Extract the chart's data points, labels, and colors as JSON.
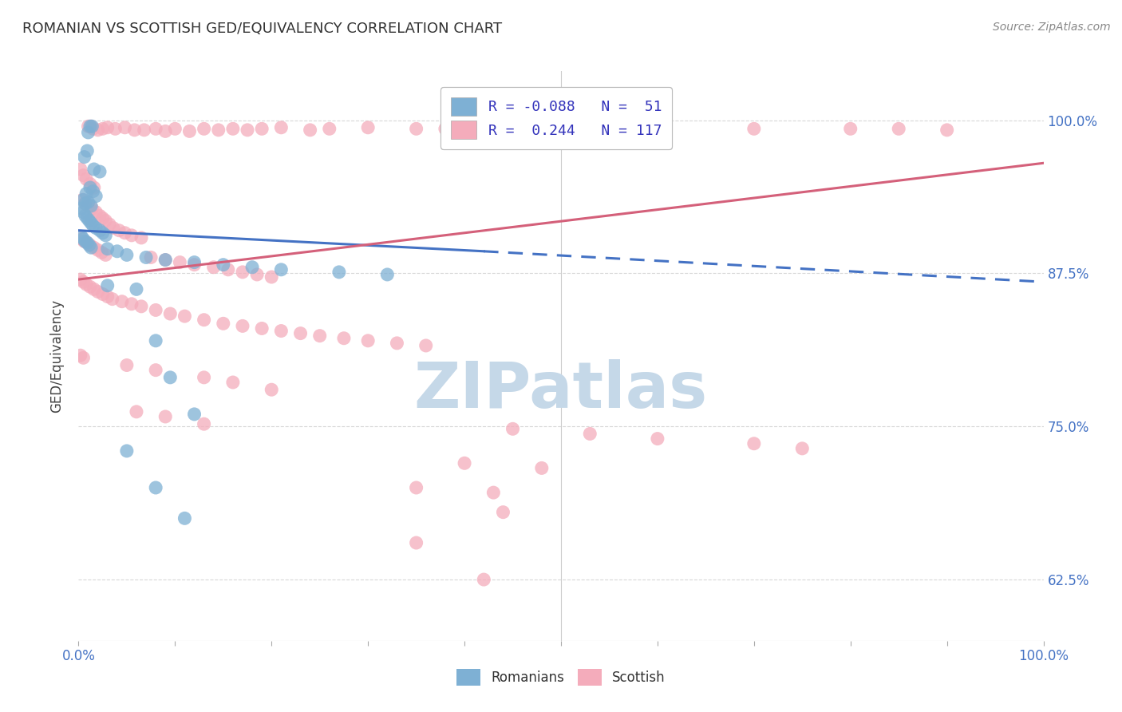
{
  "title": "ROMANIAN VS SCOTTISH GED/EQUIVALENCY CORRELATION CHART",
  "source": "Source: ZipAtlas.com",
  "ylabel": "GED/Equivalency",
  "xlim": [
    0.0,
    1.0
  ],
  "ylim": [
    0.575,
    1.04
  ],
  "yticks": [
    0.625,
    0.75,
    0.875,
    1.0
  ],
  "ytick_labels": [
    "62.5%",
    "75.0%",
    "87.5%",
    "100.0%"
  ],
  "xtick_labels_left": "0.0%",
  "xtick_labels_right": "100.0%",
  "romanian_color": "#7EB0D4",
  "scottish_color": "#F4ACBB",
  "trendline_romanian_color": "#4472C4",
  "trendline_scottish_color": "#D4607A",
  "background_color": "#ffffff",
  "grid_color": "#d8d8d8",
  "watermark_color": "#c5d8e8",
  "legend_text_color": "#3333BB",
  "R_romanian": -0.088,
  "N_romanian": 51,
  "R_scottish": 0.244,
  "N_scottish": 117,
  "trendline_rom_x0": 0.0,
  "trendline_rom_y0": 0.91,
  "trendline_rom_x1": 0.42,
  "trendline_rom_y1": 0.893,
  "trendline_rom_dash_x1": 1.0,
  "trendline_rom_dash_y1": 0.868,
  "trendline_sco_x0": 0.0,
  "trendline_sco_y0": 0.87,
  "trendline_sco_x1": 1.0,
  "trendline_sco_y1": 0.965,
  "romanian_points": [
    [
      0.01,
      0.99
    ],
    [
      0.012,
      0.995
    ],
    [
      0.014,
      0.995
    ],
    [
      0.006,
      0.97
    ],
    [
      0.009,
      0.975
    ],
    [
      0.016,
      0.96
    ],
    [
      0.022,
      0.958
    ],
    [
      0.008,
      0.94
    ],
    [
      0.012,
      0.945
    ],
    [
      0.015,
      0.942
    ],
    [
      0.018,
      0.938
    ],
    [
      0.005,
      0.935
    ],
    [
      0.007,
      0.932
    ],
    [
      0.01,
      0.933
    ],
    [
      0.013,
      0.93
    ],
    [
      0.003,
      0.928
    ],
    [
      0.005,
      0.925
    ],
    [
      0.007,
      0.922
    ],
    [
      0.009,
      0.92
    ],
    [
      0.011,
      0.918
    ],
    [
      0.013,
      0.916
    ],
    [
      0.015,
      0.914
    ],
    [
      0.018,
      0.912
    ],
    [
      0.022,
      0.91
    ],
    [
      0.025,
      0.908
    ],
    [
      0.028,
      0.906
    ],
    [
      0.003,
      0.905
    ],
    [
      0.005,
      0.903
    ],
    [
      0.007,
      0.901
    ],
    [
      0.009,
      0.9
    ],
    [
      0.011,
      0.898
    ],
    [
      0.013,
      0.896
    ],
    [
      0.03,
      0.895
    ],
    [
      0.04,
      0.893
    ],
    [
      0.05,
      0.89
    ],
    [
      0.07,
      0.888
    ],
    [
      0.09,
      0.886
    ],
    [
      0.12,
      0.884
    ],
    [
      0.15,
      0.882
    ],
    [
      0.18,
      0.88
    ],
    [
      0.21,
      0.878
    ],
    [
      0.27,
      0.876
    ],
    [
      0.32,
      0.874
    ],
    [
      0.03,
      0.865
    ],
    [
      0.06,
      0.862
    ],
    [
      0.08,
      0.82
    ],
    [
      0.095,
      0.79
    ],
    [
      0.12,
      0.76
    ],
    [
      0.05,
      0.73
    ],
    [
      0.08,
      0.7
    ],
    [
      0.11,
      0.675
    ]
  ],
  "scottish_points": [
    [
      0.01,
      0.995
    ],
    [
      0.013,
      0.995
    ],
    [
      0.015,
      0.993
    ],
    [
      0.02,
      0.992
    ],
    [
      0.025,
      0.993
    ],
    [
      0.03,
      0.994
    ],
    [
      0.038,
      0.993
    ],
    [
      0.048,
      0.994
    ],
    [
      0.058,
      0.992
    ],
    [
      0.068,
      0.992
    ],
    [
      0.08,
      0.993
    ],
    [
      0.09,
      0.991
    ],
    [
      0.1,
      0.993
    ],
    [
      0.115,
      0.991
    ],
    [
      0.13,
      0.993
    ],
    [
      0.145,
      0.992
    ],
    [
      0.16,
      0.993
    ],
    [
      0.175,
      0.992
    ],
    [
      0.19,
      0.993
    ],
    [
      0.21,
      0.994
    ],
    [
      0.24,
      0.992
    ],
    [
      0.26,
      0.993
    ],
    [
      0.3,
      0.994
    ],
    [
      0.35,
      0.993
    ],
    [
      0.38,
      0.993
    ],
    [
      0.42,
      0.991
    ],
    [
      0.5,
      0.993
    ],
    [
      0.6,
      0.992
    ],
    [
      0.7,
      0.993
    ],
    [
      0.8,
      0.993
    ],
    [
      0.85,
      0.993
    ],
    [
      0.9,
      0.992
    ],
    [
      0.002,
      0.96
    ],
    [
      0.005,
      0.955
    ],
    [
      0.008,
      0.952
    ],
    [
      0.012,
      0.948
    ],
    [
      0.016,
      0.945
    ],
    [
      0.004,
      0.935
    ],
    [
      0.007,
      0.932
    ],
    [
      0.01,
      0.93
    ],
    [
      0.014,
      0.928
    ],
    [
      0.018,
      0.925
    ],
    [
      0.022,
      0.922
    ],
    [
      0.025,
      0.92
    ],
    [
      0.028,
      0.918
    ],
    [
      0.032,
      0.915
    ],
    [
      0.036,
      0.912
    ],
    [
      0.042,
      0.91
    ],
    [
      0.048,
      0.908
    ],
    [
      0.055,
      0.906
    ],
    [
      0.065,
      0.904
    ],
    [
      0.003,
      0.903
    ],
    [
      0.006,
      0.901
    ],
    [
      0.009,
      0.9
    ],
    [
      0.012,
      0.898
    ],
    [
      0.016,
      0.896
    ],
    [
      0.02,
      0.894
    ],
    [
      0.024,
      0.892
    ],
    [
      0.028,
      0.89
    ],
    [
      0.075,
      0.888
    ],
    [
      0.09,
      0.886
    ],
    [
      0.105,
      0.884
    ],
    [
      0.12,
      0.882
    ],
    [
      0.14,
      0.88
    ],
    [
      0.155,
      0.878
    ],
    [
      0.17,
      0.876
    ],
    [
      0.185,
      0.874
    ],
    [
      0.2,
      0.872
    ],
    [
      0.002,
      0.87
    ],
    [
      0.005,
      0.868
    ],
    [
      0.008,
      0.866
    ],
    [
      0.012,
      0.864
    ],
    [
      0.016,
      0.862
    ],
    [
      0.02,
      0.86
    ],
    [
      0.025,
      0.858
    ],
    [
      0.03,
      0.856
    ],
    [
      0.035,
      0.854
    ],
    [
      0.045,
      0.852
    ],
    [
      0.055,
      0.85
    ],
    [
      0.065,
      0.848
    ],
    [
      0.08,
      0.845
    ],
    [
      0.095,
      0.842
    ],
    [
      0.11,
      0.84
    ],
    [
      0.13,
      0.837
    ],
    [
      0.15,
      0.834
    ],
    [
      0.17,
      0.832
    ],
    [
      0.19,
      0.83
    ],
    [
      0.21,
      0.828
    ],
    [
      0.23,
      0.826
    ],
    [
      0.25,
      0.824
    ],
    [
      0.275,
      0.822
    ],
    [
      0.3,
      0.82
    ],
    [
      0.33,
      0.818
    ],
    [
      0.36,
      0.816
    ],
    [
      0.002,
      0.808
    ],
    [
      0.005,
      0.806
    ],
    [
      0.05,
      0.8
    ],
    [
      0.08,
      0.796
    ],
    [
      0.13,
      0.79
    ],
    [
      0.16,
      0.786
    ],
    [
      0.2,
      0.78
    ],
    [
      0.06,
      0.762
    ],
    [
      0.09,
      0.758
    ],
    [
      0.13,
      0.752
    ],
    [
      0.45,
      0.748
    ],
    [
      0.53,
      0.744
    ],
    [
      0.6,
      0.74
    ],
    [
      0.7,
      0.736
    ],
    [
      0.75,
      0.732
    ],
    [
      0.4,
      0.72
    ],
    [
      0.48,
      0.716
    ],
    [
      0.35,
      0.7
    ],
    [
      0.43,
      0.696
    ],
    [
      0.44,
      0.68
    ],
    [
      0.35,
      0.655
    ],
    [
      0.42,
      0.625
    ]
  ]
}
